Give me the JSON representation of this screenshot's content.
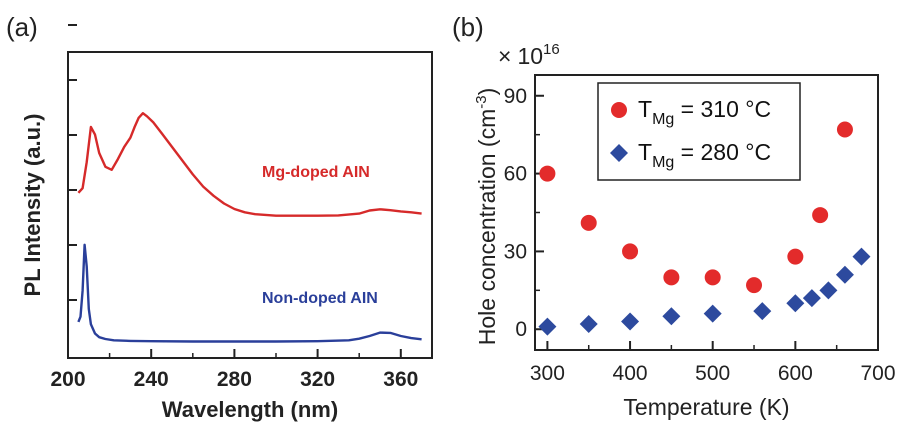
{
  "chart_data": [
    {
      "panel_label": "(a)",
      "type": "line",
      "xlabel": "Wavelength (nm)",
      "ylabel": "PL Intensity (a.u.)",
      "xlim": [
        200,
        375
      ],
      "ylim": [
        0,
        1
      ],
      "xticks": [
        "200",
        "240",
        "280",
        "320",
        "360"
      ],
      "xtick_values": [
        200,
        240,
        280,
        320,
        360
      ],
      "yticks_labeled": false,
      "y_tick_count": 6,
      "series": [
        {
          "name": "Mg-doped AIN",
          "color": "#d62a2a",
          "x": [
            205,
            207,
            209,
            211,
            213,
            215,
            218,
            221,
            224,
            227,
            230,
            232,
            234,
            236,
            238,
            241,
            245,
            250,
            255,
            260,
            265,
            270,
            275,
            280,
            285,
            290,
            300,
            310,
            320,
            330,
            340,
            345,
            350,
            355,
            360,
            365,
            370
          ],
          "y": [
            0.54,
            0.555,
            0.64,
            0.755,
            0.73,
            0.67,
            0.625,
            0.615,
            0.65,
            0.69,
            0.72,
            0.755,
            0.785,
            0.8,
            0.79,
            0.77,
            0.735,
            0.69,
            0.645,
            0.6,
            0.56,
            0.53,
            0.505,
            0.487,
            0.476,
            0.47,
            0.465,
            0.465,
            0.465,
            0.466,
            0.472,
            0.482,
            0.486,
            0.483,
            0.479,
            0.476,
            0.472
          ]
        },
        {
          "name": "Non-doped AIN",
          "color": "#2a3f9a",
          "x": [
            205,
            206,
            207,
            208,
            209,
            210,
            211,
            213,
            215,
            218,
            222,
            230,
            240,
            260,
            280,
            300,
            320,
            335,
            340,
            345,
            350,
            355,
            360,
            365,
            370
          ],
          "y": [
            0.118,
            0.135,
            0.22,
            0.37,
            0.3,
            0.16,
            0.11,
            0.08,
            0.068,
            0.062,
            0.058,
            0.056,
            0.055,
            0.054,
            0.054,
            0.054,
            0.055,
            0.058,
            0.063,
            0.072,
            0.083,
            0.082,
            0.072,
            0.065,
            0.061
          ]
        }
      ]
    },
    {
      "panel_label": "(b)",
      "type": "scatter",
      "xlabel": "Temperature (K)",
      "ylabel_main": "Hole concentration (cm",
      "ylabel_exp": "-3",
      "ylabel_close": ")",
      "multiplier_prefix": "×",
      "multiplier_base": "10",
      "multiplier_exp": "16",
      "xlim": [
        285,
        700
      ],
      "ylim": [
        -8,
        98
      ],
      "xticks": [
        "300",
        "400",
        "500",
        "600",
        "700"
      ],
      "xtick_values": [
        300,
        400,
        500,
        600,
        700
      ],
      "yticks": [
        "0",
        "30",
        "60",
        "90"
      ],
      "ytick_values": [
        0,
        30,
        60,
        90
      ],
      "legend_position": "top-right",
      "series": [
        {
          "name_prefix": "T",
          "name_sub": "Mg",
          "name_suffix": " = 310 °C",
          "marker": "circle",
          "color": "#e32b2b",
          "x": [
            300,
            350,
            400,
            450,
            500,
            550,
            600,
            630,
            660
          ],
          "y": [
            60,
            41,
            30,
            20,
            20,
            17,
            28,
            44,
            77
          ]
        },
        {
          "name_prefix": "T",
          "name_sub": "Mg",
          "name_suffix": " = 280 °C",
          "marker": "diamond",
          "color": "#2d4a9e",
          "x": [
            300,
            350,
            400,
            450,
            500,
            560,
            600,
            620,
            640,
            660,
            680
          ],
          "y": [
            1,
            2,
            3,
            5,
            6,
            7,
            10,
            12,
            15,
            21,
            28
          ]
        }
      ]
    }
  ]
}
